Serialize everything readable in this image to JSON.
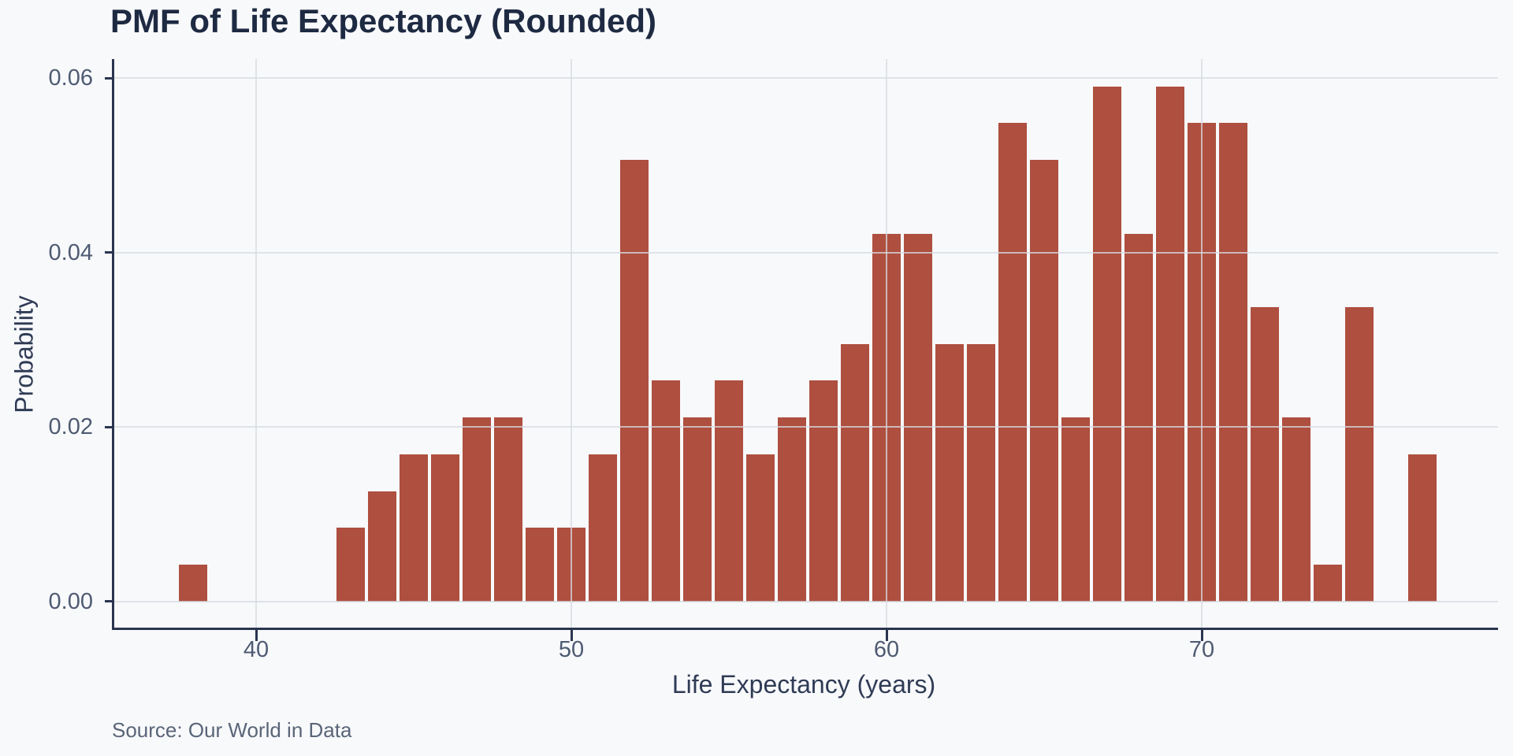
{
  "title": "PMF of Life Expectancy (Rounded)",
  "source_note": "Source: Our World in Data",
  "colors": {
    "bar": "#AE4F3F",
    "background": "#F8F9FB",
    "gridline": "#D7DBE2",
    "spine": "#2A3550",
    "tick_label": "#4F5B73",
    "axis_label": "#2F3B55",
    "title": "#1E2A42",
    "source": "#5A6578"
  },
  "chart_data": {
    "type": "bar",
    "title": "PMF of Life Expectancy (Rounded)",
    "xlabel": "Life Expectancy (years)",
    "ylabel": "Probability",
    "x": [
      38,
      43,
      44,
      45,
      46,
      47,
      48,
      49,
      50,
      51,
      52,
      53,
      54,
      55,
      56,
      57,
      58,
      59,
      60,
      61,
      62,
      63,
      64,
      65,
      66,
      67,
      68,
      69,
      70,
      71,
      72,
      73,
      74,
      75,
      77
    ],
    "values": [
      0.00422,
      0.00844,
      0.01266,
      0.01688,
      0.01688,
      0.0211,
      0.0211,
      0.00844,
      0.00844,
      0.01688,
      0.05063,
      0.02532,
      0.0211,
      0.02532,
      0.01688,
      0.0211,
      0.02532,
      0.02954,
      0.04219,
      0.04219,
      0.02954,
      0.02954,
      0.05485,
      0.05063,
      0.0211,
      0.05907,
      0.04219,
      0.05907,
      0.05485,
      0.05485,
      0.03376,
      0.0211,
      0.00422,
      0.03376,
      0.01688
    ],
    "bar_width_x": 0.92,
    "xticks": [
      40,
      50,
      60,
      70
    ],
    "yticks": [
      {
        "value": 0.0,
        "label": "0.00"
      },
      {
        "value": 0.02,
        "label": "0.02"
      },
      {
        "value": 0.04,
        "label": "0.04"
      },
      {
        "value": 0.06,
        "label": "0.06"
      }
    ],
    "xlim": [
      35.5,
      79.4
    ],
    "ylim": [
      -0.003,
      0.0622
    ],
    "grid": "horizontal and vertical gridlines at ticks, drawn above bars",
    "legend": "none"
  }
}
